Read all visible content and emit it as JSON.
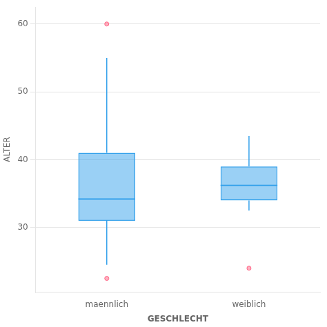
{
  "chart_data": {
    "type": "box",
    "categories": [
      "maennlich",
      "weiblich"
    ],
    "xlabel": "GESCHLECHT",
    "ylabel": "ALTER",
    "ylim": [
      20.5,
      62.5
    ],
    "yticks": [
      30,
      40,
      50,
      60
    ],
    "grid": true,
    "boxes": [
      {
        "q1": 31.0,
        "median": 34.2,
        "q3": 41.0,
        "whisker_low": 24.5,
        "whisker_high": 55.0,
        "outliers_high": [
          60.0
        ],
        "outliers_low": [
          22.5
        ]
      },
      {
        "q1": 34.0,
        "median": 36.2,
        "q3": 39.0,
        "whisker_low": 32.5,
        "whisker_high": 43.5,
        "outliers_high": [],
        "outliers_low": [
          24.0
        ]
      }
    ]
  }
}
